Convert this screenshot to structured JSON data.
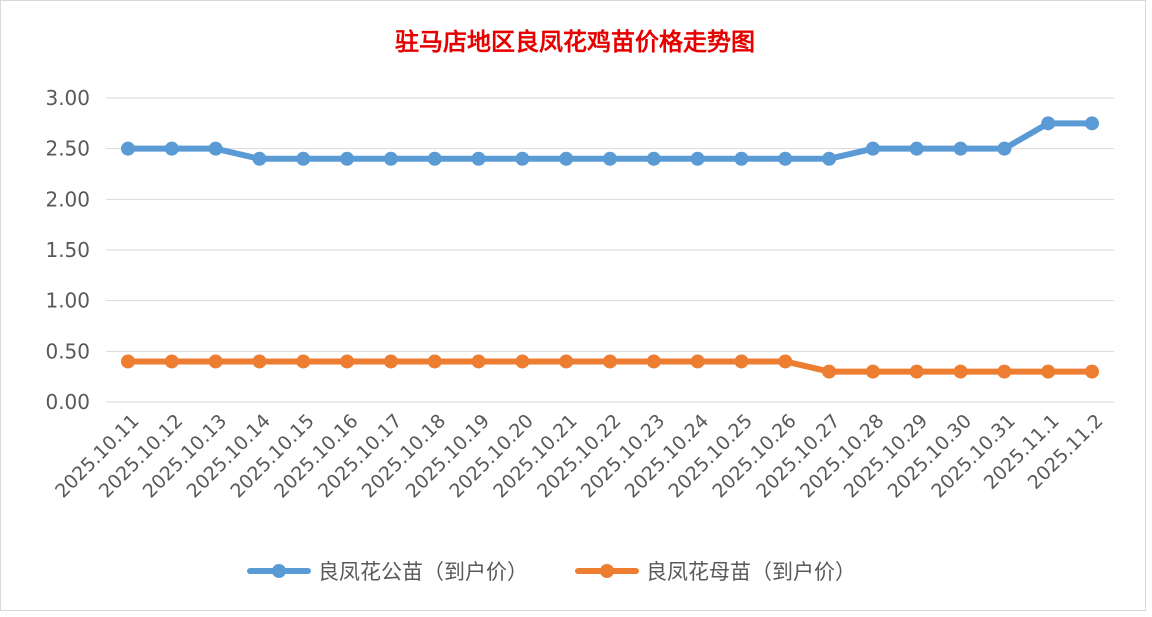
{
  "chart_data": {
    "type": "line",
    "title": "驻马店地区良凤花鸡苗价格走势图",
    "xlabel": "",
    "ylabel": "",
    "ylim": [
      0,
      3
    ],
    "ytick_labels": [
      "0.00",
      "0.50",
      "1.00",
      "1.50",
      "2.00",
      "2.50",
      "3.00"
    ],
    "ytick_values": [
      0,
      0.5,
      1.0,
      1.5,
      2.0,
      2.5,
      3.0
    ],
    "grid": true,
    "legend_position": "bottom",
    "categories": [
      "2025.10.11",
      "2025.10.12",
      "2025.10.13",
      "2025.10.14",
      "2025.10.15",
      "2025.10.16",
      "2025.10.17",
      "2025.10.18",
      "2025.10.19",
      "2025.10.20",
      "2025.10.21",
      "2025.10.22",
      "2025.10.23",
      "2025.10.24",
      "2025.10.25",
      "2025.10.26",
      "2025.10.27",
      "2025.10.28",
      "2025.10.29",
      "2025.10.30",
      "2025.10.31",
      "2025.11.1",
      "2025.11.2"
    ],
    "series": [
      {
        "name": "良凤花公苗（到户价）",
        "color": "#5b9bd5",
        "values": [
          2.5,
          2.5,
          2.5,
          2.4,
          2.4,
          2.4,
          2.4,
          2.4,
          2.4,
          2.4,
          2.4,
          2.4,
          2.4,
          2.4,
          2.4,
          2.4,
          2.4,
          2.5,
          2.5,
          2.5,
          2.5,
          2.75,
          2.75
        ]
      },
      {
        "name": "良凤花母苗（到户价）",
        "color": "#ed7d31",
        "values": [
          0.4,
          0.4,
          0.4,
          0.4,
          0.4,
          0.4,
          0.4,
          0.4,
          0.4,
          0.4,
          0.4,
          0.4,
          0.4,
          0.4,
          0.4,
          0.4,
          0.3,
          0.3,
          0.3,
          0.3,
          0.3,
          0.3,
          0.3
        ]
      }
    ]
  }
}
